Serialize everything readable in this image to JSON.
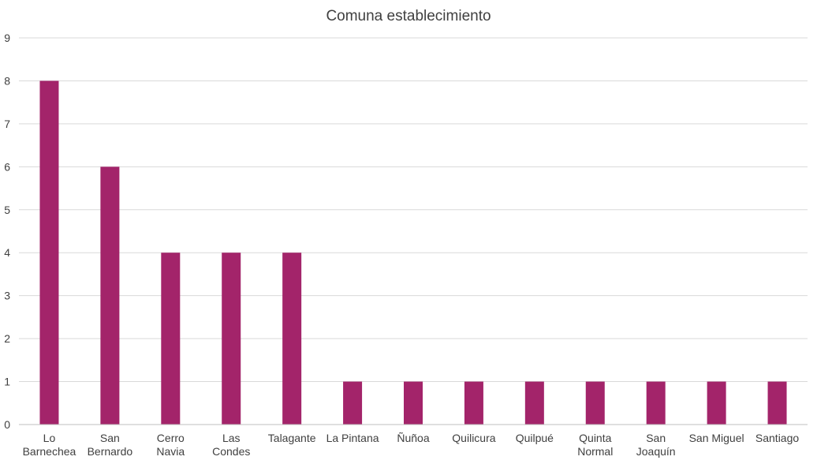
{
  "chart_data": {
    "type": "bar",
    "title": "Comuna establecimiento",
    "xlabel": "",
    "ylabel": "",
    "categories": [
      "Lo Barnechea",
      "San Bernardo",
      "Cerro Navia",
      "Las Condes",
      "Talagante",
      "La Pintana",
      "Ñuñoa",
      "Quilicura",
      "Quilpué",
      "Quinta Normal",
      "San Joaquín",
      "San Miguel",
      "Santiago"
    ],
    "category_lines": [
      [
        "Lo",
        "Barnechea"
      ],
      [
        "San",
        "Bernardo"
      ],
      [
        "Cerro",
        "Navia"
      ],
      [
        "Las",
        "Condes"
      ],
      [
        "Talagante"
      ],
      [
        "La Pintana"
      ],
      [
        "Ñuñoa"
      ],
      [
        "Quilicura"
      ],
      [
        "Quilpué"
      ],
      [
        "Quinta",
        "Normal"
      ],
      [
        "San",
        "Joaquín"
      ],
      [
        "San Miguel"
      ],
      [
        "Santiago"
      ]
    ],
    "values": [
      8,
      6,
      4,
      4,
      4,
      1,
      1,
      1,
      1,
      1,
      1,
      1,
      1
    ],
    "ylim": [
      0,
      9
    ],
    "yticks": [
      "0",
      "1",
      "2",
      "3",
      "4",
      "5",
      "6",
      "7",
      "8",
      "9"
    ],
    "grid": true,
    "legend": "none",
    "bar_color": "#a3246a"
  }
}
